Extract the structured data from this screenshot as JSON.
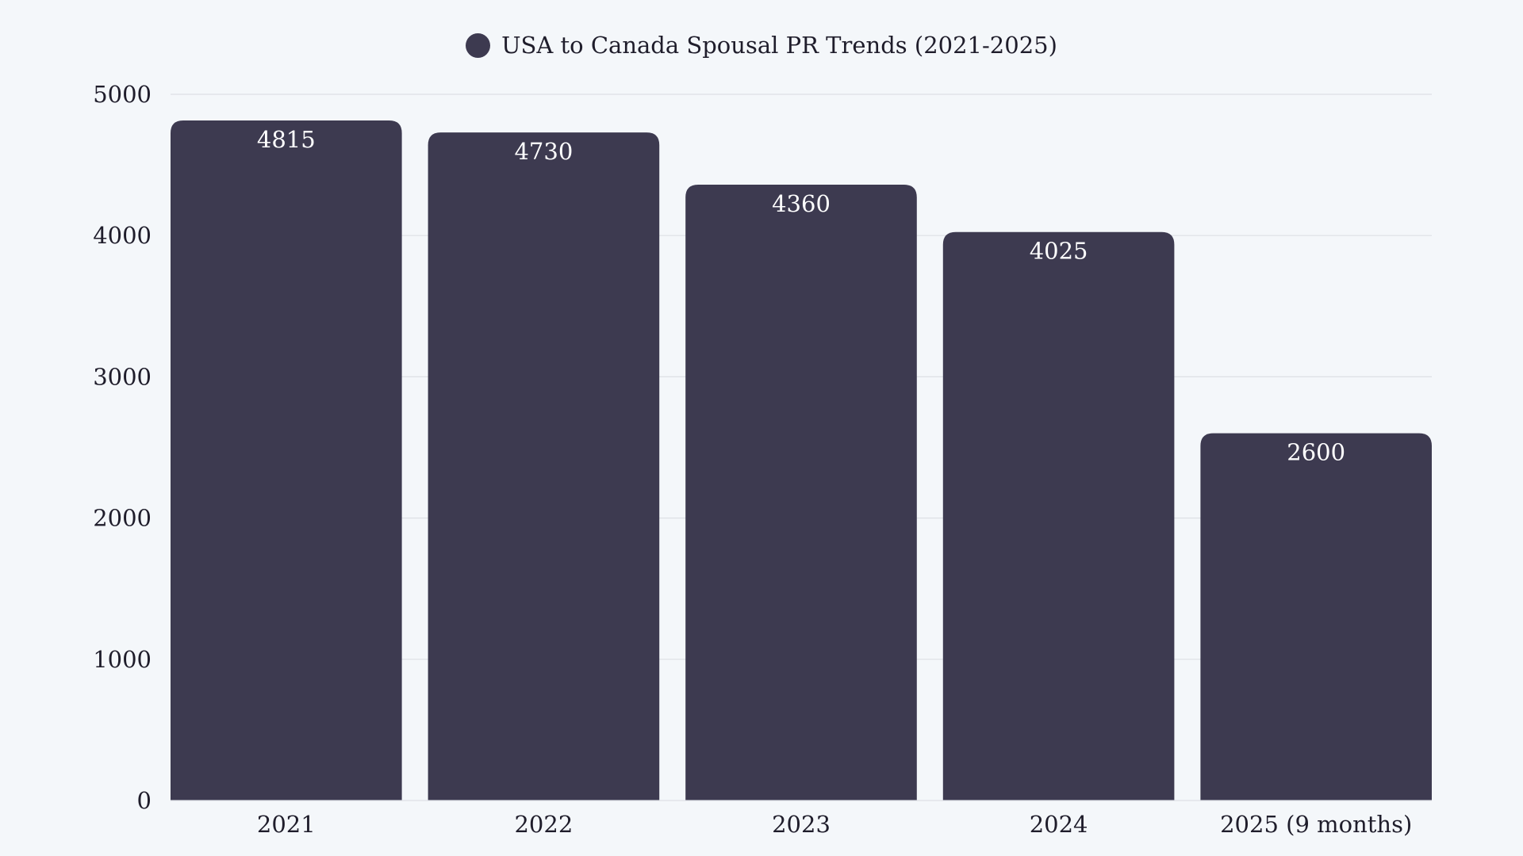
{
  "chart_data": {
    "type": "bar",
    "categories": [
      "2021",
      "2022",
      "2023",
      "2024",
      "2025 (9 months)"
    ],
    "series": [
      {
        "name": "USA to Canada Spousal PR Trends (2021-2025)",
        "values": [
          4815,
          4730,
          4360,
          4025,
          2600
        ],
        "color": "#3d3a50"
      }
    ],
    "title": "",
    "xlabel": "",
    "ylabel": "",
    "ylim": [
      0,
      5000
    ],
    "yticks": [
      0,
      1000,
      2000,
      3000,
      4000,
      5000
    ],
    "grid": true,
    "legend": "top-center",
    "data_labels": true
  },
  "colors": {
    "background": "#f4f7fa",
    "grid": "#dde0e5",
    "label_text": "#1f1d2b",
    "bar_label_text": "#ffffff"
  }
}
